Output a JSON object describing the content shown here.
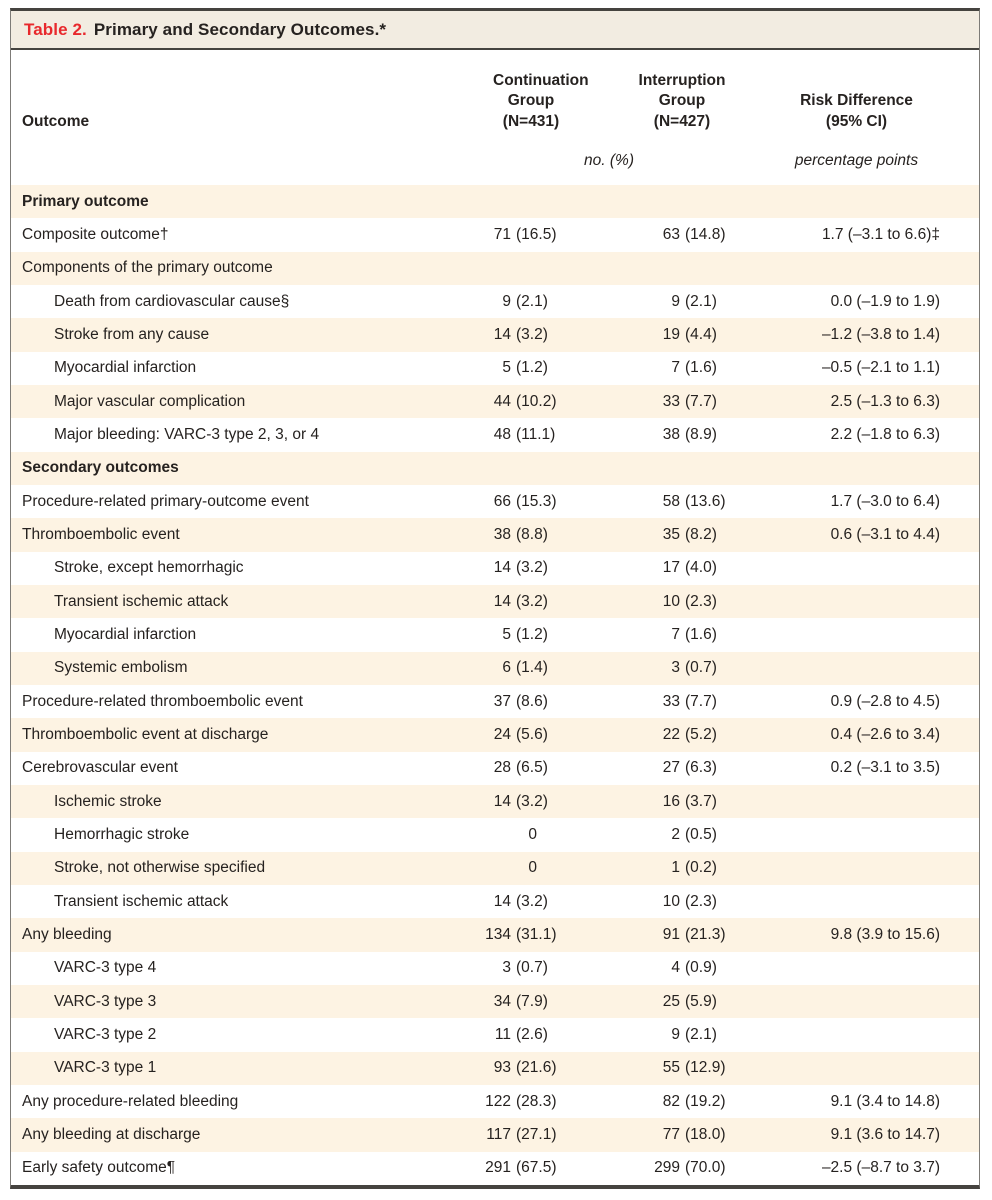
{
  "title": {
    "label": "Table 2.",
    "text": "Primary and Secondary Outcomes.*"
  },
  "columns": {
    "outcome": "Outcome",
    "continuation": "Continuation\nGroup\n(N=431)",
    "interruption": "Interruption\nGroup\n(N=427)",
    "risk_difference": "Risk Difference\n(95% CI)",
    "unit_groups": "no. (%)",
    "unit_rd": "percentage points"
  },
  "colors": {
    "accent_red": "#e8282c",
    "stripe_cream": "#fdf3e3",
    "title_bg": "#f2ece1",
    "border_dark": "#45433f",
    "text": "#262220"
  },
  "rows": [
    {
      "label": "Primary outcome",
      "type": "section",
      "indent": false,
      "c_n": "",
      "c_p": "",
      "i_n": "",
      "i_p": "",
      "rd": ""
    },
    {
      "label": "Composite outcome†",
      "type": "item",
      "indent": false,
      "c_n": "71",
      "c_p": "(16.5)",
      "i_n": "63",
      "i_p": "(14.8)",
      "rd": "1.7 (–3.1 to 6.6)‡"
    },
    {
      "label": "Components of the primary outcome",
      "type": "item",
      "indent": false,
      "c_n": "",
      "c_p": "",
      "i_n": "",
      "i_p": "",
      "rd": ""
    },
    {
      "label": "Death from cardiovascular cause§",
      "type": "item",
      "indent": true,
      "c_n": "9",
      "c_p": "(2.1)",
      "i_n": "9",
      "i_p": "(2.1)",
      "rd": "0.0 (–1.9 to 1.9)"
    },
    {
      "label": "Stroke from any cause",
      "type": "item",
      "indent": true,
      "c_n": "14",
      "c_p": "(3.2)",
      "i_n": "19",
      "i_p": "(4.4)",
      "rd": "–1.2 (–3.8 to 1.4)"
    },
    {
      "label": "Myocardial infarction",
      "type": "item",
      "indent": true,
      "c_n": "5",
      "c_p": "(1.2)",
      "i_n": "7",
      "i_p": "(1.6)",
      "rd": "–0.5 (–2.1 to 1.1)"
    },
    {
      "label": "Major vascular complication",
      "type": "item",
      "indent": true,
      "c_n": "44",
      "c_p": "(10.2)",
      "i_n": "33",
      "i_p": "(7.7)",
      "rd": "2.5 (–1.3 to 6.3)"
    },
    {
      "label": "Major bleeding: VARC-3 type 2, 3, or 4",
      "type": "item",
      "indent": true,
      "c_n": "48",
      "c_p": "(11.1)",
      "i_n": "38",
      "i_p": "(8.9)",
      "rd": "2.2 (–1.8 to 6.3)"
    },
    {
      "label": "Secondary outcomes",
      "type": "section",
      "indent": false,
      "c_n": "",
      "c_p": "",
      "i_n": "",
      "i_p": "",
      "rd": ""
    },
    {
      "label": "Procedure-related primary-outcome event",
      "type": "item",
      "indent": false,
      "c_n": "66",
      "c_p": "(15.3)",
      "i_n": "58",
      "i_p": "(13.6)",
      "rd": "1.7 (–3.0 to 6.4)"
    },
    {
      "label": "Thromboembolic event",
      "type": "item",
      "indent": false,
      "c_n": "38",
      "c_p": "(8.8)",
      "i_n": "35",
      "i_p": "(8.2)",
      "rd": "0.6 (–3.1 to 4.4)"
    },
    {
      "label": "Stroke, except hemorrhagic",
      "type": "item",
      "indent": true,
      "c_n": "14",
      "c_p": "(3.2)",
      "i_n": "17",
      "i_p": "(4.0)",
      "rd": ""
    },
    {
      "label": "Transient ischemic attack",
      "type": "item",
      "indent": true,
      "c_n": "14",
      "c_p": "(3.2)",
      "i_n": "10",
      "i_p": "(2.3)",
      "rd": ""
    },
    {
      "label": "Myocardial infarction",
      "type": "item",
      "indent": true,
      "c_n": "5",
      "c_p": "(1.2)",
      "i_n": "7",
      "i_p": "(1.6)",
      "rd": ""
    },
    {
      "label": "Systemic embolism",
      "type": "item",
      "indent": true,
      "c_n": "6",
      "c_p": "(1.4)",
      "i_n": "3",
      "i_p": "(0.7)",
      "rd": ""
    },
    {
      "label": "Procedure-related thromboembolic event",
      "type": "item",
      "indent": false,
      "c_n": "37",
      "c_p": "(8.6)",
      "i_n": "33",
      "i_p": "(7.7)",
      "rd": "0.9 (–2.8 to 4.5)"
    },
    {
      "label": "Thromboembolic event at discharge",
      "type": "item",
      "indent": false,
      "c_n": "24",
      "c_p": "(5.6)",
      "i_n": "22",
      "i_p": "(5.2)",
      "rd": "0.4 (–2.6 to 3.4)"
    },
    {
      "label": "Cerebrovascular event",
      "type": "item",
      "indent": false,
      "c_n": "28",
      "c_p": "(6.5)",
      "i_n": "27",
      "i_p": "(6.3)",
      "rd": "0.2 (–3.1 to 3.5)"
    },
    {
      "label": "Ischemic stroke",
      "type": "item",
      "indent": true,
      "c_n": "14",
      "c_p": "(3.2)",
      "i_n": "16",
      "i_p": "(3.7)",
      "rd": ""
    },
    {
      "label": "Hemorrhagic stroke",
      "type": "item",
      "indent": true,
      "c_n": "0",
      "c_p": "",
      "i_n": "2",
      "i_p": "(0.5)",
      "rd": ""
    },
    {
      "label": "Stroke, not otherwise specified",
      "type": "item",
      "indent": true,
      "c_n": "0",
      "c_p": "",
      "i_n": "1",
      "i_p": "(0.2)",
      "rd": ""
    },
    {
      "label": "Transient ischemic attack",
      "type": "item",
      "indent": true,
      "c_n": "14",
      "c_p": "(3.2)",
      "i_n": "10",
      "i_p": "(2.3)",
      "rd": ""
    },
    {
      "label": "Any bleeding",
      "type": "item",
      "indent": false,
      "c_n": "134",
      "c_p": "(31.1)",
      "i_n": "91",
      "i_p": "(21.3)",
      "rd": "9.8 (3.9 to 15.6)"
    },
    {
      "label": "VARC-3 type 4",
      "type": "item",
      "indent": true,
      "c_n": "3",
      "c_p": "(0.7)",
      "i_n": "4",
      "i_p": "(0.9)",
      "rd": ""
    },
    {
      "label": "VARC-3 type 3",
      "type": "item",
      "indent": true,
      "c_n": "34",
      "c_p": "(7.9)",
      "i_n": "25",
      "i_p": "(5.9)",
      "rd": ""
    },
    {
      "label": "VARC-3 type 2",
      "type": "item",
      "indent": true,
      "c_n": "11",
      "c_p": "(2.6)",
      "i_n": "9",
      "i_p": "(2.1)",
      "rd": ""
    },
    {
      "label": "VARC-3 type 1",
      "type": "item",
      "indent": true,
      "c_n": "93",
      "c_p": "(21.6)",
      "i_n": "55",
      "i_p": "(12.9)",
      "rd": ""
    },
    {
      "label": "Any procedure-related bleeding",
      "type": "item",
      "indent": false,
      "c_n": "122",
      "c_p": "(28.3)",
      "i_n": "82",
      "i_p": "(19.2)",
      "rd": "9.1 (3.4 to 14.8)"
    },
    {
      "label": "Any bleeding at discharge",
      "type": "item",
      "indent": false,
      "c_n": "117",
      "c_p": "(27.1)",
      "i_n": "77",
      "i_p": "(18.0)",
      "rd": "9.1 (3.6 to 14.7)"
    },
    {
      "label": "Early safety outcome¶",
      "type": "item",
      "indent": false,
      "c_n": "291",
      "c_p": "(67.5)",
      "i_n": "299",
      "i_p": "(70.0)",
      "rd": "–2.5 (–8.7 to 3.7)"
    }
  ]
}
